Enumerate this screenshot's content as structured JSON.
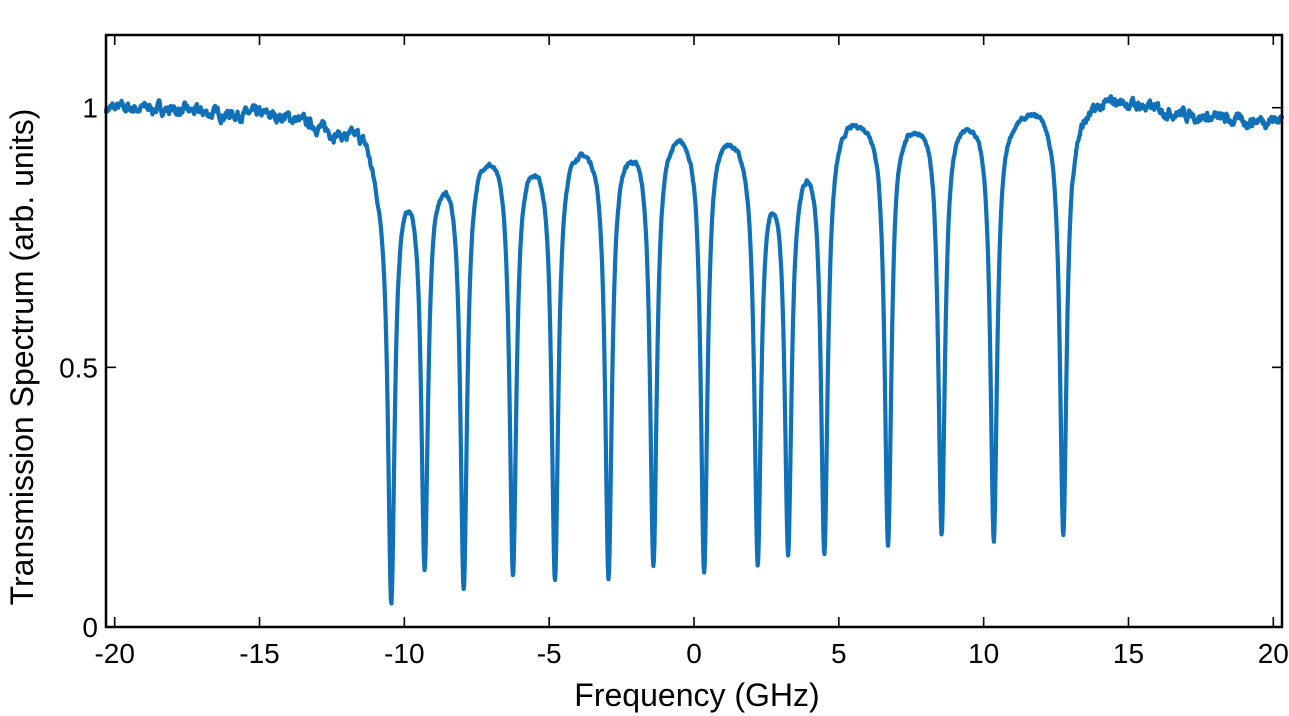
{
  "chart_data": {
    "type": "line",
    "xlabel": "Frequency (GHz)",
    "ylabel": "Transmission Spectrum (arb. units)",
    "xlim": [
      -20.3,
      20.3
    ],
    "ylim": [
      0,
      1.14
    ],
    "x_ticks": [
      -20,
      -15,
      -10,
      -5,
      0,
      5,
      10,
      15,
      20
    ],
    "x_tick_labels": [
      "-20",
      "-15",
      "-10",
      "-5",
      "0",
      "5",
      "10",
      "15",
      "20"
    ],
    "y_ticks": [
      0,
      0.5,
      1
    ],
    "y_tick_labels": [
      "0",
      "0.5",
      "1"
    ],
    "grid": false,
    "colors": {
      "line": "#1171b8"
    },
    "series": [
      {
        "baseline_points": [
          {
            "x": -20.3,
            "y": 1.0
          },
          {
            "x": -19.5,
            "y": 1.0
          },
          {
            "x": -18.5,
            "y": 1.0
          },
          {
            "x": -16.5,
            "y": 0.99
          },
          {
            "x": -15.0,
            "y": 0.99
          },
          {
            "x": -14.0,
            "y": 0.985
          },
          {
            "x": -13.0,
            "y": 0.97
          },
          {
            "x": -12.5,
            "y": 0.96
          },
          {
            "x": -12.0,
            "y": 0.955
          },
          {
            "x": -11.6,
            "y": 0.965
          },
          {
            "x": -11.3,
            "y": 0.955
          },
          {
            "x": -11.1,
            "y": 0.92
          },
          {
            "x": -10.9,
            "y": 0.89
          },
          {
            "x": -9.9,
            "y": 0.895
          },
          {
            "x": -8.6,
            "y": 0.91
          },
          {
            "x": -7.3,
            "y": 0.945
          },
          {
            "x": -5.5,
            "y": 0.94
          },
          {
            "x": -4.1,
            "y": 0.955
          },
          {
            "x": -2.3,
            "y": 0.955
          },
          {
            "x": -0.5,
            "y": 0.985
          },
          {
            "x": 1.1,
            "y": 0.98
          },
          {
            "x": 1.5,
            "y": 0.97
          },
          {
            "x": 2.7,
            "y": 0.905
          },
          {
            "x": 3.7,
            "y": 0.935
          },
          {
            "x": 4.1,
            "y": 0.95
          },
          {
            "x": 5.3,
            "y": 1.0
          },
          {
            "x": 7.5,
            "y": 0.995
          },
          {
            "x": 9.4,
            "y": 1.0
          },
          {
            "x": 11.0,
            "y": 1.0
          },
          {
            "x": 12.0,
            "y": 1.015
          },
          {
            "x": 12.5,
            "y": 0.99
          },
          {
            "x": 13.2,
            "y": 1.0
          },
          {
            "x": 14.5,
            "y": 1.02
          },
          {
            "x": 16.0,
            "y": 1.0
          },
          {
            "x": 17.5,
            "y": 0.985
          },
          {
            "x": 19.0,
            "y": 0.975
          },
          {
            "x": 20.3,
            "y": 0.98
          }
        ],
        "dips": [
          {
            "x": -10.45,
            "y": 0.06,
            "width": 0.14
          },
          {
            "x": -9.3,
            "y": 0.135,
            "width": 0.14
          },
          {
            "x": -7.95,
            "y": 0.09,
            "width": 0.14
          },
          {
            "x": -6.25,
            "y": 0.115,
            "width": 0.14
          },
          {
            "x": -4.8,
            "y": 0.105,
            "width": 0.14
          },
          {
            "x": -2.95,
            "y": 0.11,
            "width": 0.14
          },
          {
            "x": -1.4,
            "y": 0.135,
            "width": 0.14
          },
          {
            "x": 0.35,
            "y": 0.12,
            "width": 0.14
          },
          {
            "x": 2.2,
            "y": 0.145,
            "width": 0.14
          },
          {
            "x": 3.25,
            "y": 0.165,
            "width": 0.14
          },
          {
            "x": 4.5,
            "y": 0.16,
            "width": 0.14
          },
          {
            "x": 6.7,
            "y": 0.17,
            "width": 0.14
          },
          {
            "x": 8.55,
            "y": 0.195,
            "width": 0.14
          },
          {
            "x": 10.35,
            "y": 0.175,
            "width": 0.14
          },
          {
            "x": 12.75,
            "y": 0.185,
            "width": 0.14
          }
        ],
        "noise_amplitude": 0.012
      }
    ]
  }
}
